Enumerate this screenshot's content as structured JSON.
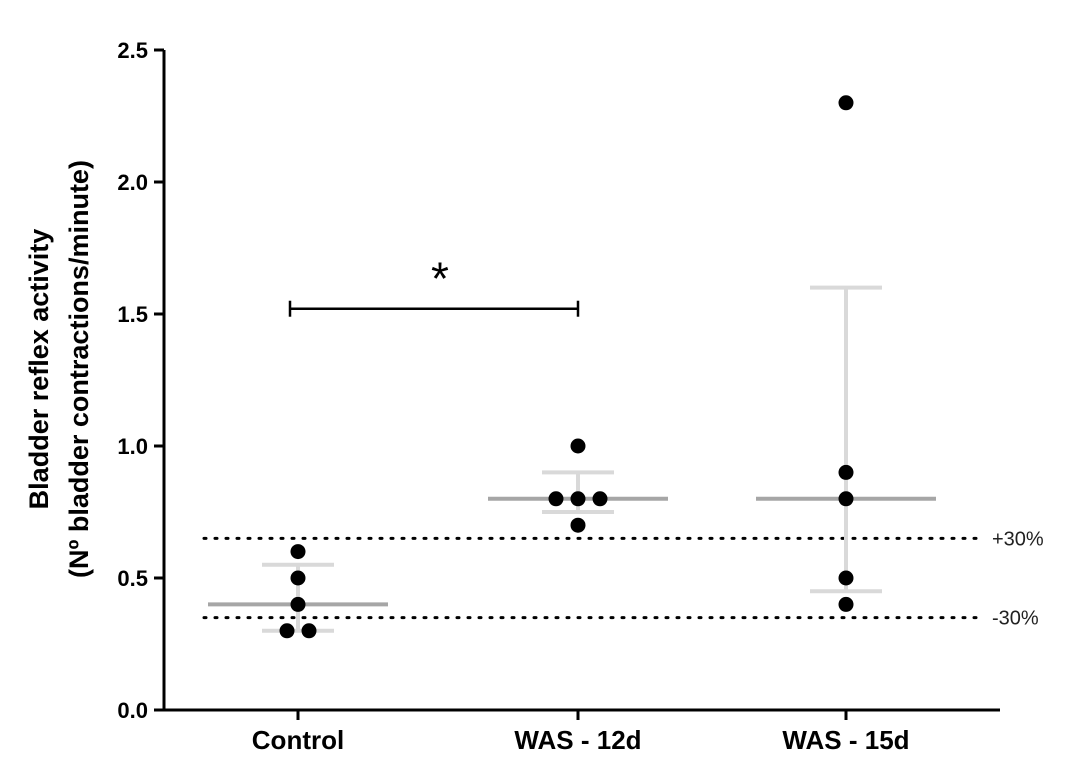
{
  "chart_data": {
    "type": "scatter",
    "title": "",
    "xlabel": "",
    "ylabel_line1": "Bladder reflex activity",
    "ylabel_line2": "(Nº bladder contractions/minute)",
    "ylim": [
      0,
      2.5
    ],
    "yticks": [
      "0.0",
      "0.5",
      "1.0",
      "1.5",
      "2.0",
      "2.5"
    ],
    "ytick_values": [
      0,
      0.5,
      1.0,
      1.5,
      2.0,
      2.5
    ],
    "categories": [
      "Control",
      "WAS - 12d",
      "WAS - 15d"
    ],
    "groups": [
      {
        "category": "Control",
        "points": [
          0.6,
          0.5,
          0.4,
          0.3,
          0.3
        ],
        "mean": 0.4,
        "err_low": 0.3,
        "err_high": 0.55
      },
      {
        "category": "WAS - 12d",
        "points": [
          1.0,
          0.8,
          0.8,
          0.8,
          0.7
        ],
        "mean": 0.8,
        "err_low": 0.75,
        "err_high": 0.9
      },
      {
        "category": "WAS - 15d",
        "points": [
          2.3,
          0.9,
          0.8,
          0.5,
          0.4
        ],
        "mean": 0.8,
        "err_low": 0.45,
        "err_high": 1.6
      }
    ],
    "reference_lines": [
      {
        "value": 0.65,
        "label": "+30%"
      },
      {
        "value": 0.35,
        "label": "-30%"
      }
    ],
    "significance": {
      "from": "Control",
      "to": "WAS - 12d",
      "value": 1.52,
      "label": "*"
    },
    "grid": false,
    "legend": "none",
    "colors": {
      "points": "#000000",
      "mean_line": "#a6a6a6",
      "error_bar": "#d9d9d9",
      "axis": "#000000",
      "reference": "#000000"
    }
  }
}
